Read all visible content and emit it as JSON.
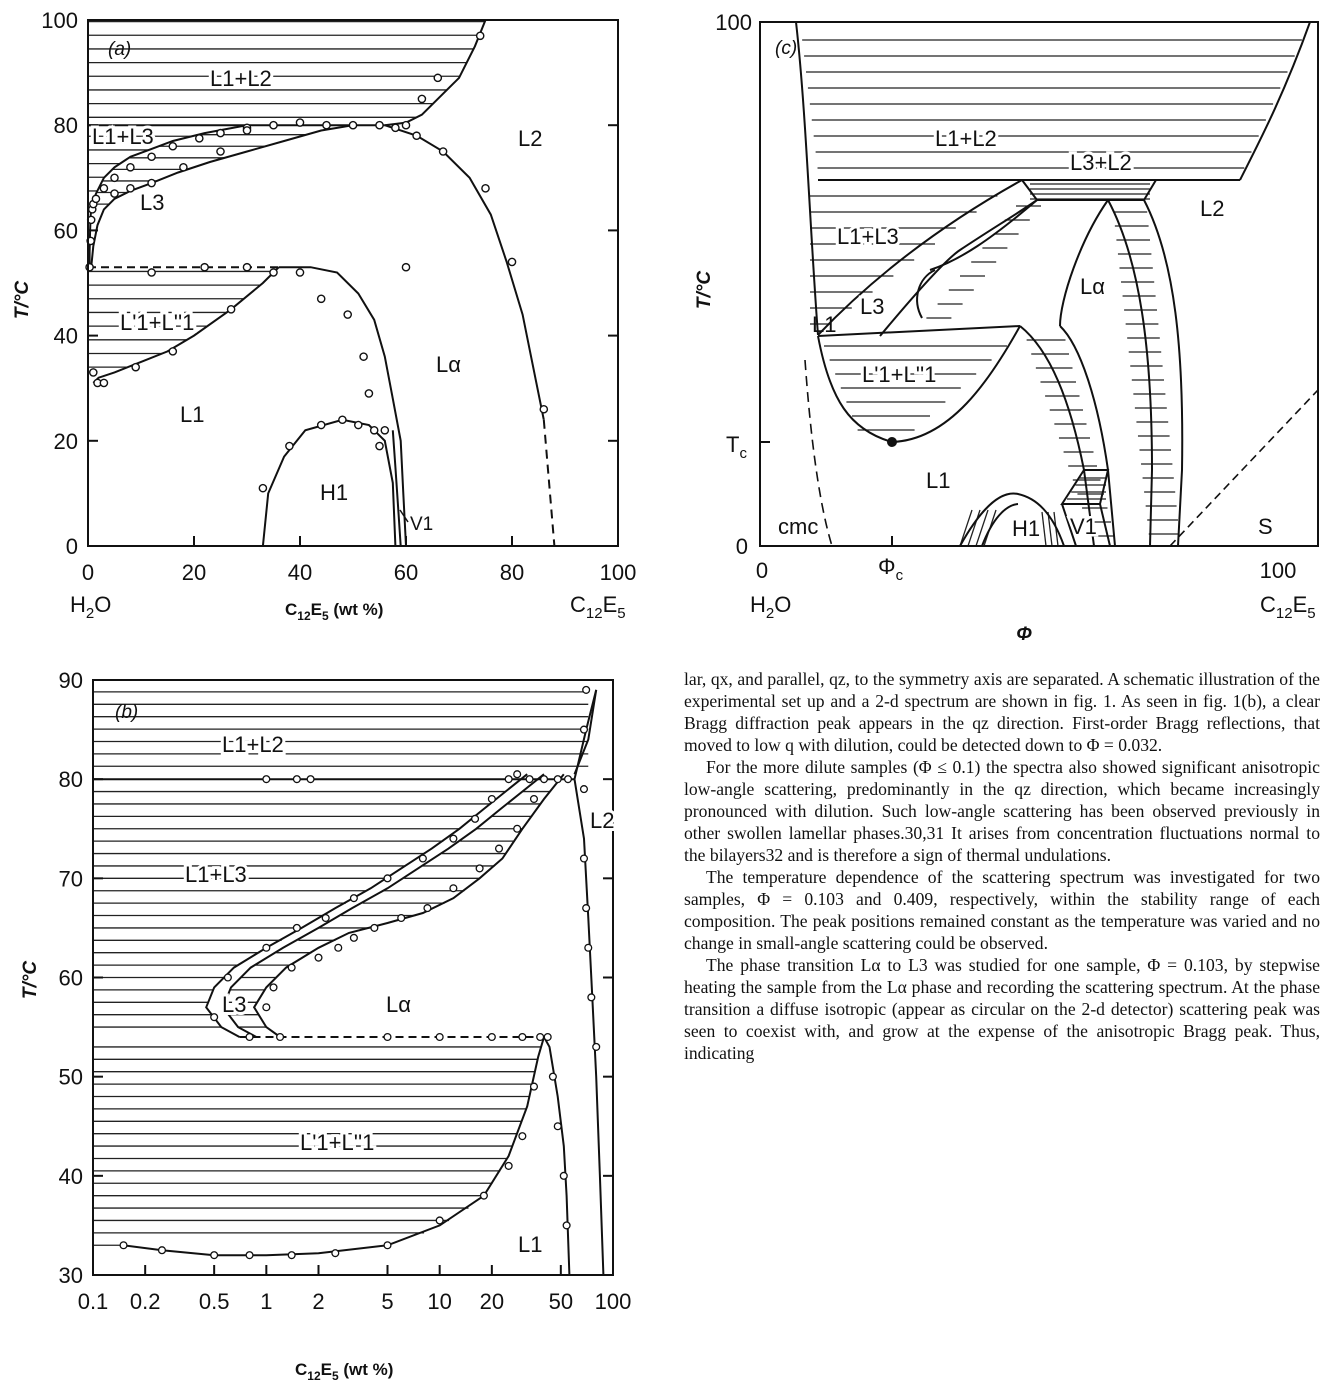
{
  "chart_data": [
    {
      "type": "phase-diagram",
      "panel_label": "(a)",
      "ylabel": "T/°C",
      "xlabel": "C12E5 (wt %)",
      "x_left_label": "H2O",
      "x_right_label": "C12E5",
      "xlim": [
        0,
        100
      ],
      "ylim": [
        0,
        100
      ],
      "x_ticks": [
        "0",
        "20",
        "40",
        "60",
        "80",
        "100"
      ],
      "y_ticks": [
        "0",
        "20",
        "40",
        "60",
        "80",
        "100"
      ],
      "phase_labels": [
        "L1+L2",
        "L1+L3",
        "L3",
        "L2",
        "L'1+L''1",
        "Lα",
        "L1",
        "H1",
        "V1"
      ],
      "boundaries": {
        "L3_upper": [
          [
            0.3,
            53
          ],
          [
            0.3,
            56
          ],
          [
            0.4,
            60
          ],
          [
            0.5,
            63
          ],
          [
            0.8,
            65
          ],
          [
            1.5,
            67
          ],
          [
            3,
            70
          ],
          [
            5,
            72
          ],
          [
            8,
            74
          ],
          [
            12,
            75.5
          ],
          [
            16,
            77
          ],
          [
            22,
            78.5
          ],
          [
            30,
            80
          ]
        ],
        "L3_lower": [
          [
            0.6,
            53
          ],
          [
            1,
            57
          ],
          [
            1.8,
            61
          ],
          [
            3,
            64
          ],
          [
            5,
            66
          ],
          [
            8,
            67.5
          ],
          [
            12,
            69
          ],
          [
            17,
            71
          ],
          [
            23,
            73
          ],
          [
            30,
            75
          ],
          [
            37,
            77
          ],
          [
            44,
            79
          ],
          [
            50,
            80
          ]
        ],
        "L1L2_horizontal": [
          [
            0,
            80
          ],
          [
            56,
            80
          ]
        ],
        "L2_upper_branch": [
          [
            56,
            80
          ],
          [
            60,
            80.5
          ],
          [
            63,
            82
          ],
          [
            66,
            85
          ],
          [
            70,
            89
          ],
          [
            73,
            95
          ],
          [
            75,
            100
          ]
        ],
        "L2_Lalpha_boundary": [
          [
            56,
            80
          ],
          [
            62,
            78
          ],
          [
            67,
            75
          ],
          [
            72,
            70
          ],
          [
            76,
            63
          ],
          [
            79,
            54
          ],
          [
            82,
            44
          ],
          [
            84,
            34
          ],
          [
            86,
            24
          ],
          [
            87,
            12
          ],
          [
            88,
            0
          ]
        ],
        "L1L1_dome": [
          [
            1,
            31
          ],
          [
            2,
            32
          ],
          [
            5,
            33
          ],
          [
            10,
            35
          ],
          [
            15,
            37
          ],
          [
            20,
            40
          ],
          [
            27,
            45
          ],
          [
            33,
            50
          ],
          [
            35,
            52
          ],
          [
            36,
            53
          ]
        ],
        "L1_Lalpha": [
          [
            36,
            53
          ],
          [
            42,
            53
          ],
          [
            47,
            52
          ],
          [
            51,
            48
          ],
          [
            54,
            43
          ],
          [
            56,
            36
          ],
          [
            57.5,
            28
          ],
          [
            59,
            20
          ],
          [
            59.5,
            10
          ],
          [
            60,
            0
          ]
        ],
        "H1_dome": [
          [
            33,
            0
          ],
          [
            34,
            10
          ],
          [
            37,
            17
          ],
          [
            41,
            22
          ],
          [
            48,
            24
          ],
          [
            53,
            23
          ],
          [
            56,
            20
          ],
          [
            57.5,
            12
          ],
          [
            58,
            0
          ]
        ],
        "V1_inner": [
          [
            57.5,
            22
          ],
          [
            58,
            15
          ],
          [
            58.6,
            6
          ],
          [
            59,
            0
          ]
        ],
        "eutectic_line": [
          [
            0,
            53
          ],
          [
            36,
            53
          ]
        ]
      },
      "measured_points": [
        [
          0.3,
          53
        ],
        [
          0.5,
          58
        ],
        [
          0.6,
          62
        ],
        [
          0.8,
          64
        ],
        [
          1,
          65
        ],
        [
          1.5,
          66
        ],
        [
          3,
          68
        ],
        [
          5,
          70
        ],
        [
          8,
          72
        ],
        [
          12,
          74
        ],
        [
          16,
          76
        ],
        [
          21,
          77.5
        ],
        [
          25,
          78.5
        ],
        [
          30,
          79.5
        ],
        [
          35,
          80
        ],
        [
          40,
          80.5
        ],
        [
          45,
          80
        ],
        [
          50,
          80
        ],
        [
          55,
          80
        ],
        [
          58,
          79.5
        ],
        [
          60,
          80
        ],
        [
          63,
          85
        ],
        [
          66,
          89
        ],
        [
          74,
          97
        ],
        [
          62,
          78
        ],
        [
          67,
          75
        ],
        [
          75,
          68
        ],
        [
          80,
          54
        ],
        [
          86,
          26
        ],
        [
          1,
          33
        ],
        [
          1.8,
          31
        ],
        [
          3,
          31
        ],
        [
          9,
          34
        ],
        [
          16,
          37
        ],
        [
          27,
          45
        ],
        [
          35,
          52
        ],
        [
          40,
          52
        ],
        [
          44,
          47
        ],
        [
          49,
          44
        ],
        [
          52,
          36
        ],
        [
          53,
          29
        ],
        [
          55,
          19
        ],
        [
          33,
          11
        ],
        [
          38,
          19
        ],
        [
          44,
          23
        ],
        [
          48,
          24
        ],
        [
          51,
          23
        ],
        [
          54,
          22
        ],
        [
          56,
          22
        ],
        [
          12,
          52
        ],
        [
          22,
          53
        ],
        [
          30,
          53
        ],
        [
          60,
          53
        ],
        [
          30,
          79
        ],
        [
          25,
          75
        ],
        [
          18,
          72
        ],
        [
          12,
          69
        ],
        [
          8,
          68
        ],
        [
          5,
          67
        ]
      ]
    },
    {
      "type": "phase-diagram",
      "panel_label": "(b)",
      "ylabel": "T/°C",
      "xlabel": "C12E5 (wt %)",
      "x_scale": "log",
      "xlim": [
        0.1,
        100
      ],
      "ylim": [
        30,
        90
      ],
      "x_ticks": [
        "0.1",
        "0.2",
        "0.5",
        "1",
        "2",
        "5",
        "10",
        "20",
        "50",
        "100"
      ],
      "y_ticks": [
        "30",
        "40",
        "50",
        "60",
        "70",
        "80",
        "90"
      ],
      "phase_labels": [
        "L1+L2",
        "L1+L3",
        "L3",
        "Lα",
        "L2",
        "L'1+L''1",
        "L1"
      ],
      "boundaries": {
        "L3_outer": [
          [
            0.7,
            54
          ],
          [
            0.55,
            55
          ],
          [
            0.45,
            57
          ],
          [
            0.5,
            59
          ],
          [
            0.65,
            61
          ],
          [
            1,
            63
          ],
          [
            1.6,
            65
          ],
          [
            2.5,
            67
          ],
          [
            4,
            69
          ],
          [
            6,
            71
          ],
          [
            9,
            73
          ],
          [
            13,
            75
          ],
          [
            18,
            77
          ],
          [
            25,
            79
          ],
          [
            32,
            80.5
          ]
        ],
        "L3_inner": [
          [
            1.2,
            54
          ],
          [
            1,
            55
          ],
          [
            0.85,
            57
          ],
          [
            1,
            59
          ],
          [
            1.3,
            61
          ],
          [
            2,
            63
          ],
          [
            3,
            64.5
          ],
          [
            5,
            65.5
          ],
          [
            8,
            66.5
          ],
          [
            12,
            68
          ],
          [
            17,
            70
          ],
          [
            23,
            72
          ],
          [
            30,
            75
          ],
          [
            40,
            78
          ],
          [
            52,
            80.5
          ]
        ],
        "L1L3_line80": [
          [
            0.1,
            80
          ],
          [
            60,
            80
          ]
        ],
        "L2_curve": [
          [
            60,
            80.5
          ],
          [
            72,
            84
          ],
          [
            80,
            89
          ]
        ],
        "Lalpha_right": [
          [
            60,
            80
          ],
          [
            68,
            74
          ],
          [
            72,
            66
          ],
          [
            76,
            58
          ],
          [
            80,
            50
          ],
          [
            84,
            40
          ],
          [
            88,
            30
          ]
        ],
        "L1_Lalpha": [
          [
            40,
            54
          ],
          [
            43,
            53
          ],
          [
            48,
            48
          ],
          [
            52,
            43
          ],
          [
            54,
            38
          ],
          [
            55,
            34
          ],
          [
            56,
            30
          ]
        ],
        "L1L1_dome": [
          [
            0.15,
            33
          ],
          [
            0.25,
            32.5
          ],
          [
            0.5,
            32
          ],
          [
            1,
            32
          ],
          [
            2,
            32.2
          ],
          [
            5,
            33
          ],
          [
            10,
            35
          ],
          [
            18,
            38
          ],
          [
            25,
            42
          ],
          [
            32,
            47
          ],
          [
            37,
            52
          ],
          [
            40,
            54
          ]
        ],
        "eutectic_line": [
          [
            0.7,
            54
          ],
          [
            40,
            54
          ]
        ]
      },
      "measured_points": [
        [
          1,
          80
        ],
        [
          1.5,
          80
        ],
        [
          1.8,
          80
        ],
        [
          28,
          80.5
        ],
        [
          33,
          80
        ],
        [
          40,
          80
        ],
        [
          48,
          80
        ],
        [
          55,
          80
        ],
        [
          70,
          89
        ],
        [
          68,
          85
        ],
        [
          68,
          79
        ],
        [
          68,
          72
        ],
        [
          70,
          67
        ],
        [
          72,
          63
        ],
        [
          75,
          58
        ],
        [
          80,
          53
        ],
        [
          0.5,
          56
        ],
        [
          0.6,
          60
        ],
        [
          1,
          63
        ],
        [
          1.5,
          65
        ],
        [
          2.2,
          66
        ],
        [
          3.2,
          68
        ],
        [
          5,
          70
        ],
        [
          8,
          72
        ],
        [
          12,
          74
        ],
        [
          16,
          76
        ],
        [
          20,
          78
        ],
        [
          25,
          80
        ],
        [
          1,
          57
        ],
        [
          1.1,
          59
        ],
        [
          1.4,
          61
        ],
        [
          2,
          62
        ],
        [
          2.6,
          63
        ],
        [
          3.2,
          64
        ],
        [
          4.2,
          65
        ],
        [
          6,
          66
        ],
        [
          8.5,
          67
        ],
        [
          12,
          69
        ],
        [
          17,
          71
        ],
        [
          22,
          73
        ],
        [
          28,
          75
        ],
        [
          35,
          78
        ],
        [
          0.8,
          54
        ],
        [
          1.2,
          54
        ],
        [
          5,
          54
        ],
        [
          10,
          54
        ],
        [
          20,
          54
        ],
        [
          30,
          54
        ],
        [
          38,
          54
        ],
        [
          42,
          54
        ],
        [
          45,
          50
        ],
        [
          48,
          45
        ],
        [
          52,
          40
        ],
        [
          54,
          35
        ],
        [
          0.15,
          33
        ],
        [
          0.25,
          32.5
        ],
        [
          0.5,
          32
        ],
        [
          0.8,
          32
        ],
        [
          1.4,
          32
        ],
        [
          2.5,
          32.2
        ],
        [
          5,
          33
        ],
        [
          10,
          35.5
        ],
        [
          18,
          38
        ],
        [
          25,
          41
        ],
        [
          30,
          44
        ],
        [
          35,
          49
        ]
      ]
    },
    {
      "type": "phase-diagram",
      "panel_label": "(c)",
      "ylabel": "T/°C",
      "xlabel": "Φ",
      "x_left_label": "H2O",
      "x_right_label": "C12E5",
      "x_ticks": [
        "0",
        "Φc",
        "100"
      ],
      "y_ticks": [
        "0",
        "Tc",
        "100"
      ],
      "phase_labels": [
        "L1+L2",
        "L3+L2",
        "L2",
        "L1+L3",
        "Lα",
        "L1",
        "L3",
        "L'1+L''1",
        "cmc",
        "H1",
        "V1",
        "S"
      ],
      "critical_point": "Tc, Φc"
    }
  ],
  "figure_labels": {
    "a_L1L2": "L1+L2",
    "a_L1L3": "L1+L3",
    "a_L3": "L3",
    "a_L2": "L2",
    "a_L1pL1pp": "L'1+L''1",
    "a_Lalpha": "Lα",
    "a_L1": "L1",
    "a_H1": "H1",
    "a_V1": "V1",
    "b_L1L2": "L1+L2",
    "b_L1L3": "L1+L3",
    "b_L3": "L3",
    "b_Lalpha": "Lα",
    "b_L2": "L2",
    "b_L1pL1pp": "L'1+L''1",
    "b_L1": "L1",
    "c_L1L2": "L1+L2",
    "c_L3L2": "L3+L2",
    "c_L2": "L2",
    "c_L1L3": "L1+L3",
    "c_Lalpha": "Lα",
    "c_L1": "L1",
    "c_L3": "L3",
    "c_L1pL1pp": "L'1+L''1",
    "c_L1b": "L1",
    "c_cmc": "cmc",
    "c_H1": "H1",
    "c_V1": "V1",
    "c_S": "S",
    "c_Tc": "Tc",
    "c_Phic": "Φc",
    "c_Phi": "Φ",
    "c_y0": "0",
    "c_y100": "100",
    "c_x0": "0",
    "c_x100": "100"
  },
  "text": {
    "p1": "lar, qx, and parallel, qz, to the symmetry axis are separated. A schematic illustration of the experimental set up and a 2-d spectrum are shown in fig. 1. As seen in fig. 1(b), a clear Bragg diffraction peak appears in the qz direction. First-order Bragg reflections, that moved to low q with dilution, could be detected down to Φ = 0.032.",
    "p2": "For the more dilute samples (Φ ≤ 0.1) the spectra also showed significant anisotropic low-angle scattering, predominantly in the qz direction, which became increasingly pronounced with dilution. Such low-angle scattering has been observed previously in other swollen lamellar phases.30,31 It arises from concentration fluctuations normal to the bilayers32 and is therefore a sign of thermal undulations.",
    "p3": "The temperature dependence of the scattering spectrum was investigated for two samples, Φ = 0.103 and 0.409, respectively, within the stability range of each composition. The peak positions remained constant as the temperature was varied and no change in small-angle scattering could be observed.",
    "p4": "The phase transition Lα to L3 was studied for one sample, Φ = 0.103, by stepwise heating the sample from the Lα phase and recording the scattering spectrum. At the phase transition a diffuse isotropic (appear as circular on the 2-d detector) scattering peak was seen to coexist with, and grow at the expense of the anisotropic Bragg peak. Thus, indicating"
  }
}
